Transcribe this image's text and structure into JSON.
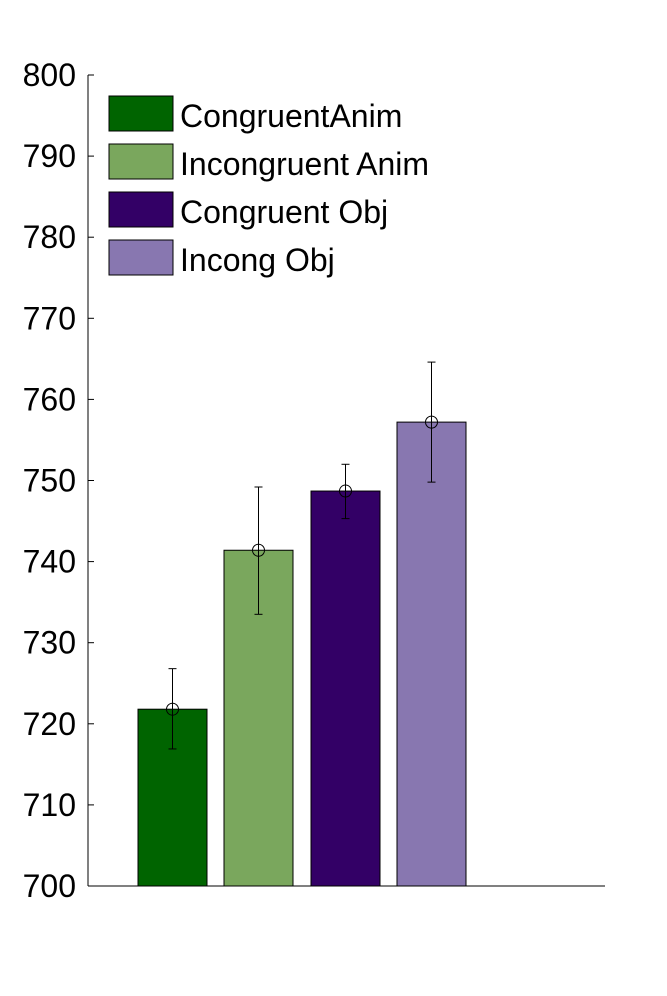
{
  "chart_data": {
    "type": "bar",
    "title": "",
    "xlabel": "",
    "ylabel": "",
    "ylim": [
      700,
      800
    ],
    "yticks": [
      700,
      710,
      720,
      730,
      740,
      750,
      760,
      770,
      780,
      790,
      800
    ],
    "grid": false,
    "legend_position": "top-left",
    "series": [
      {
        "name": "CongruentAnim",
        "value": 721.8,
        "error_low": 716.9,
        "error_high": 726.8,
        "color": "#006400"
      },
      {
        "name": "Incongruent Anim",
        "value": 741.4,
        "error_low": 733.5,
        "error_high": 749.2,
        "color": "#7aa75d"
      },
      {
        "name": "Congruent Obj",
        "value": 748.7,
        "error_low": 745.3,
        "error_high": 752.0,
        "color": "#330066"
      },
      {
        "name": "Incong Obj",
        "value": 757.2,
        "error_low": 749.8,
        "error_high": 764.6,
        "color": "#8877b0"
      }
    ]
  }
}
